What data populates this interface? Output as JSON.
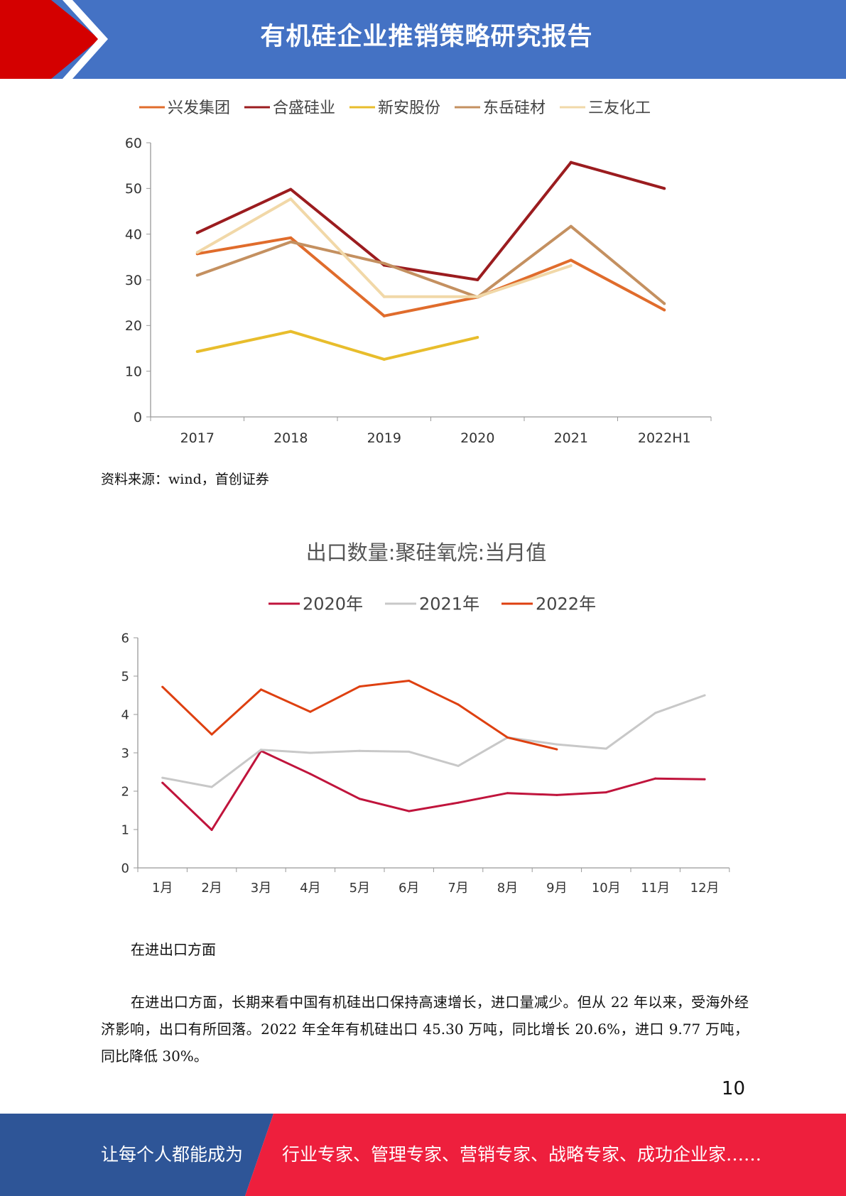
{
  "header": {
    "title": "有机硅企业推销策略研究报告"
  },
  "chart_data": [
    {
      "type": "line",
      "title": "",
      "categories": [
        "2017",
        "2018",
        "2019",
        "2020",
        "2021",
        "2022H1"
      ],
      "ylim": [
        0,
        60
      ],
      "yticks": [
        "0",
        "10",
        "20",
        "30",
        "40",
        "50",
        "60"
      ],
      "legend_position": "top",
      "grid": false,
      "series": [
        {
          "name": "兴发集团",
          "color": "#e06c2c",
          "values": [
            35.7,
            39.2,
            22.1,
            26.2,
            34.3,
            23.4
          ]
        },
        {
          "name": "合盛硅业",
          "color": "#9b1c1f",
          "values": [
            40.3,
            49.8,
            33.2,
            30.0,
            55.7,
            50.0
          ]
        },
        {
          "name": "新安股份",
          "color": "#e8bd2c",
          "values": [
            14.3,
            18.7,
            12.6,
            17.4,
            null,
            null
          ]
        },
        {
          "name": "东岳硅材",
          "color": "#c49060",
          "values": [
            31.0,
            38.3,
            33.6,
            26.2,
            41.7,
            24.8
          ]
        },
        {
          "name": "三友化工",
          "color": "#f1d8a8",
          "values": [
            36.0,
            47.7,
            26.3,
            26.3,
            33.1,
            null
          ]
        }
      ]
    },
    {
      "type": "line",
      "title": "出口数量:聚硅氧烷:当月值",
      "categories": [
        "1月",
        "2月",
        "3月",
        "4月",
        "5月",
        "6月",
        "7月",
        "8月",
        "9月",
        "10月",
        "11月",
        "12月"
      ],
      "ylim": [
        0,
        6
      ],
      "yticks": [
        "0",
        "1",
        "2",
        "3",
        "4",
        "5",
        "6"
      ],
      "legend_position": "top",
      "grid": false,
      "series": [
        {
          "name": "2020年",
          "color": "#c0143c",
          "values": [
            2.22,
            0.99,
            3.05,
            2.45,
            1.8,
            1.48,
            1.7,
            1.95,
            1.9,
            1.97,
            2.33,
            2.31
          ]
        },
        {
          "name": "2021年",
          "color": "#c8c8c8",
          "values": [
            2.35,
            2.11,
            3.08,
            3.0,
            3.05,
            3.03,
            2.66,
            3.4,
            3.22,
            3.11,
            4.04,
            4.5
          ]
        },
        {
          "name": "2022年",
          "color": "#de4010",
          "values": [
            4.72,
            3.48,
            4.65,
            4.07,
            4.73,
            4.88,
            4.26,
            3.4,
            3.09,
            null,
            null,
            null
          ]
        }
      ]
    }
  ],
  "source_note": "资料来源：wind，首创证券",
  "intro_text": "在进出口方面",
  "paragraph": "在进出口方面，长期来看中国有机硅出口保持高速增长，进口量减少。但从 22 年以来，受海外经济影响，出口有所回落。2022 年全年有机硅出口 45.30 万吨，同比增长 20.6%，进口 9.77 万吨，同比降低 30%。",
  "page_number": "10",
  "footer": {
    "slogan_left": "让每个人都能成为",
    "slogan_right": "行业专家、管理专家、营销专家、战略专家、成功企业家……",
    "left_color": "#2e5597",
    "right_color": "#ee1f3d"
  }
}
